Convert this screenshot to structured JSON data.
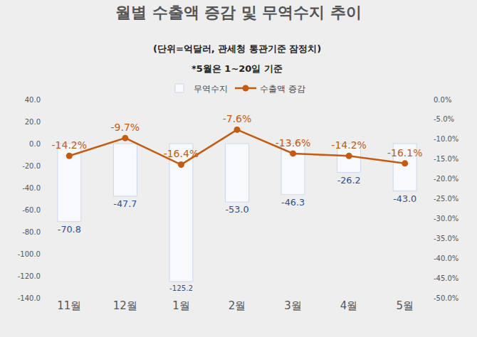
{
  "chart_data": {
    "type": "bar",
    "title": "월별 수출액 증감 및 무역수지 추이",
    "subtitle": "(단위=억달러, 관세청 통관기준 잠정치)",
    "annotations": [
      "*5월은 1~20일 기준"
    ],
    "categories": [
      "11월",
      "12월",
      "1월",
      "2월",
      "3월",
      "4월",
      "5월"
    ],
    "series": [
      {
        "name": "무역수지",
        "type": "bar",
        "color": "#f7f9fd",
        "values": [
          -70.8,
          -47.7,
          -125.2,
          -53.0,
          -46.3,
          -26.2,
          -43.0
        ],
        "value_labels": [
          "-70.8",
          "-47.7",
          "-125.2",
          "-53.0",
          "-46.3",
          "-26.2",
          "-43.0"
        ]
      },
      {
        "name": "수출액 증감",
        "type": "line",
        "axis": "y2",
        "color": "#c55a11",
        "marker": "circle",
        "values": [
          -14.2,
          -9.7,
          -16.4,
          -7.6,
          -13.6,
          -14.2,
          -16.1
        ],
        "value_labels": [
          "-14.2%",
          "-9.7%",
          "-16.4%",
          "-7.6%",
          "-13.6%",
          "-14.2%",
          "-16.1%"
        ]
      }
    ],
    "ylim": [
      -140,
      40
    ],
    "yticks": [
      {
        "value": 40,
        "label": "40.0"
      },
      {
        "value": 20,
        "label": "20.0"
      },
      {
        "value": 0,
        "label": "0.0"
      },
      {
        "value": -20,
        "label": "-20.0"
      },
      {
        "value": -40,
        "label": "-40.0"
      },
      {
        "value": -60,
        "label": "-60.0"
      },
      {
        "value": -80,
        "label": "-80.0"
      },
      {
        "value": -100,
        "label": "-100.0"
      },
      {
        "value": -120,
        "label": "-120.0"
      },
      {
        "value": -140,
        "label": "-140.0"
      }
    ],
    "y2lim": [
      -50,
      0
    ],
    "y2ticks": [
      {
        "value": 0,
        "label": "0.0%"
      },
      {
        "value": -5,
        "label": "-5.0%"
      },
      {
        "value": -10,
        "label": "-10.0%"
      },
      {
        "value": -15,
        "label": "-15.0%"
      },
      {
        "value": -20,
        "label": "-20.0%"
      },
      {
        "value": -25,
        "label": "-25.0%"
      },
      {
        "value": -30,
        "label": "-30.0%"
      },
      {
        "value": -35,
        "label": "-35.0%"
      },
      {
        "value": -40,
        "label": "-40.0%"
      },
      {
        "value": -45,
        "label": "-45.0%"
      },
      {
        "value": -50,
        "label": "-50.0%"
      }
    ],
    "grid": false,
    "legend": "top",
    "data_labels": true
  }
}
